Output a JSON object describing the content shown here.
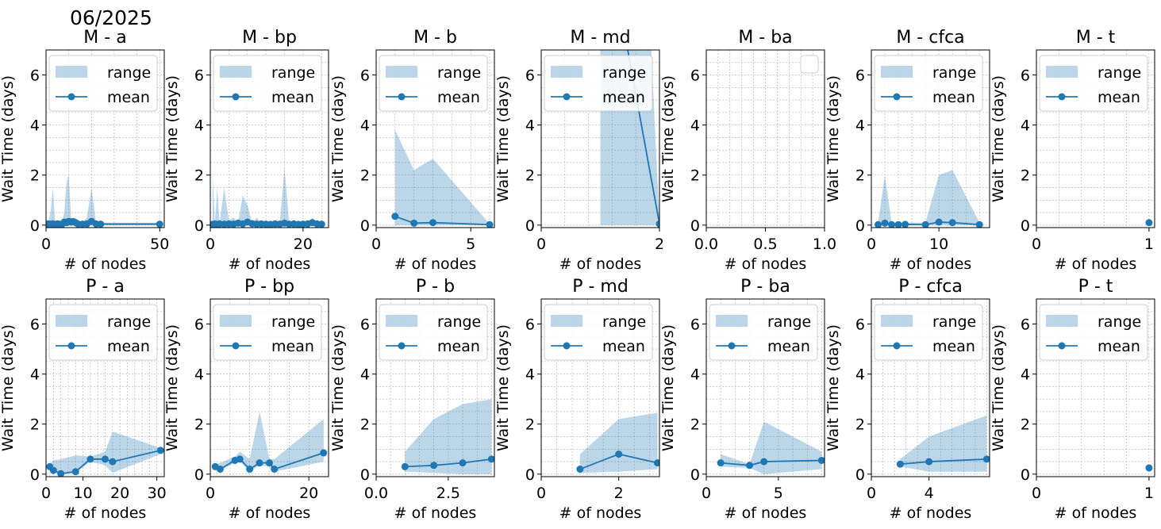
{
  "figure_title": "06/2025",
  "colors": {
    "series": "#1f77b4",
    "range_fill": "#1f77b4",
    "grid": "#b0b0b0",
    "axis": "#000000"
  },
  "legend_labels": {
    "range": "range",
    "mean": "mean"
  },
  "chart_data": [
    {
      "type": "line",
      "title": "M -  a",
      "xlabel": "# of nodes",
      "ylabel": "Wait Time (days)",
      "xlim": [
        0,
        52
      ],
      "ylim": [
        -0.1,
        7
      ],
      "xticks": [
        0,
        50
      ],
      "xticklabels": [
        "0",
        "50"
      ],
      "yticks": [
        0,
        2,
        4,
        6
      ],
      "legend": true,
      "legend_position": "upper-left",
      "series": [
        {
          "name": "mean",
          "x": [
            1,
            2,
            3,
            4,
            5,
            6,
            7,
            8,
            9,
            10,
            11,
            12,
            13,
            14,
            16,
            18,
            20,
            22,
            24,
            50
          ],
          "mean": [
            0.05,
            0.04,
            0.05,
            0.03,
            0.05,
            0.04,
            0.03,
            0.12,
            0.1,
            0.15,
            0.12,
            0.14,
            0.1,
            0.05,
            0.04,
            0.05,
            0.15,
            0.05,
            0.04,
            0.04
          ],
          "low": [
            0,
            0,
            0,
            0,
            0,
            0,
            0,
            0,
            0,
            0,
            0,
            0,
            0,
            0,
            0,
            0,
            0,
            0,
            0,
            0
          ],
          "high": [
            0.1,
            0.5,
            1.5,
            0.1,
            0.2,
            0.1,
            0.1,
            0.5,
            1.7,
            2.0,
            0.3,
            0.2,
            0.1,
            0.1,
            0.1,
            0.3,
            1.5,
            0.1,
            0.1,
            0.1
          ]
        }
      ]
    },
    {
      "type": "line",
      "title": "M -  bp",
      "xlabel": "# of nodes",
      "ylabel": "Wait Time (days)",
      "xlim": [
        0,
        25.5
      ],
      "ylim": [
        -0.1,
        7
      ],
      "xticks": [
        0,
        20
      ],
      "xticklabels": [
        "0",
        "20"
      ],
      "yticks": [
        0,
        2,
        4,
        6
      ],
      "legend": true,
      "legend_position": "upper-left",
      "series": [
        {
          "name": "mean",
          "x": [
            0.5,
            1,
            1.5,
            2,
            3,
            4,
            5,
            6,
            7,
            8,
            9,
            10,
            11,
            12,
            13,
            14,
            15,
            16,
            17,
            18,
            19,
            20,
            21,
            22,
            23,
            24
          ],
          "mean": [
            0.03,
            0.05,
            0.03,
            0.05,
            0.04,
            0.05,
            0.04,
            0.08,
            0.05,
            0.12,
            0.06,
            0.04,
            0.05,
            0.04,
            0.03,
            0.05,
            0.04,
            0.08,
            0.04,
            0.05,
            0.03,
            0.04,
            0.05,
            0.1,
            0.05,
            0.04
          ],
          "low": [
            0,
            0,
            0,
            0,
            0,
            0,
            0,
            0,
            0,
            0,
            0,
            0,
            0,
            0,
            0,
            0,
            0,
            0,
            0,
            0,
            0,
            0,
            0,
            0,
            0,
            0
          ],
          "high": [
            2.0,
            0.1,
            1.5,
            0.1,
            1.5,
            0.2,
            0.3,
            0.1,
            1.2,
            0.8,
            0.1,
            0.3,
            0.1,
            0.1,
            0.1,
            0.2,
            0.1,
            2.3,
            0.1,
            0.2,
            0.1,
            0.1,
            0.1,
            0.3,
            0.1,
            0.1
          ]
        }
      ]
    },
    {
      "type": "line",
      "title": "M -  b",
      "xlabel": "# of nodes",
      "ylabel": "Wait Time (days)",
      "xlim": [
        0,
        6.25
      ],
      "ylim": [
        -0.1,
        7
      ],
      "xticks": [
        0,
        5
      ],
      "xticklabels": [
        "0",
        "5"
      ],
      "yticks": [
        0,
        2,
        4,
        6
      ],
      "legend": true,
      "legend_position": "upper-left",
      "series": [
        {
          "name": "mean",
          "x": [
            1,
            2,
            3,
            6
          ],
          "mean": [
            0.35,
            0.08,
            0.1,
            0.02
          ],
          "low": [
            0,
            0,
            0,
            0
          ],
          "high": [
            3.8,
            2.2,
            2.65,
            0.05
          ]
        }
      ]
    },
    {
      "type": "line",
      "title": "M -  md",
      "xlabel": "# of nodes",
      "ylabel": "Wait Time (days)",
      "xlim": [
        0,
        2
      ],
      "ylim": [
        -0.1,
        7
      ],
      "xticks": [
        0,
        2
      ],
      "xticklabels": [
        "0",
        "2"
      ],
      "yticks": [
        0,
        2,
        4,
        6
      ],
      "legend": true,
      "legend_position": "upper-left",
      "series": [
        {
          "name": "mean",
          "x": [
            1,
            2
          ],
          "mean": [
            13,
            0.05
          ],
          "low": [
            0,
            0
          ],
          "high": [
            50,
            0.1
          ]
        }
      ]
    },
    {
      "type": "line",
      "title": "M -  ba",
      "xlabel": "# of nodes",
      "ylabel": "Wait Time (days)",
      "xlim": [
        0,
        1
      ],
      "ylim": [
        -0.1,
        7
      ],
      "xticks": [
        0,
        0.5,
        1
      ],
      "xticklabels": [
        "0.0",
        "0.5",
        "1.0"
      ],
      "yticks": [
        0,
        2,
        4,
        6
      ],
      "legend": false,
      "legend_position": "upper-right",
      "series": [
        {
          "name": "mean",
          "x": [],
          "mean": [],
          "low": [],
          "high": []
        }
      ]
    },
    {
      "type": "line",
      "title": "M -  cfca",
      "xlabel": "# of nodes",
      "ylabel": "Wait Time (days)",
      "xlim": [
        0,
        17.5
      ],
      "ylim": [
        -0.1,
        7
      ],
      "xticks": [
        0,
        10
      ],
      "xticklabels": [
        "0",
        "10"
      ],
      "yticks": [
        0,
        2,
        4,
        6
      ],
      "legend": true,
      "legend_position": "upper-left",
      "series": [
        {
          "name": "mean",
          "x": [
            1,
            2,
            3,
            4,
            5,
            8,
            10,
            12,
            16
          ],
          "mean": [
            0.02,
            0.08,
            0.02,
            0.02,
            0.03,
            0.02,
            0.12,
            0.1,
            0.02
          ],
          "low": [
            0,
            0,
            0,
            0,
            0,
            0,
            0,
            0,
            0
          ],
          "high": [
            0.1,
            2.0,
            0.1,
            0.1,
            0.1,
            0.1,
            2.0,
            2.2,
            0.1
          ]
        }
      ]
    },
    {
      "type": "line",
      "title": "M -  t",
      "xlabel": "# of nodes",
      "ylabel": "Wait Time (days)",
      "xlim": [
        0,
        1.05
      ],
      "ylim": [
        -0.1,
        7
      ],
      "xticks": [
        0,
        1
      ],
      "xticklabels": [
        "0",
        "1"
      ],
      "yticks": [
        0,
        2,
        4,
        6
      ],
      "legend": true,
      "legend_position": "upper-left",
      "series": [
        {
          "name": "mean",
          "x": [
            1
          ],
          "mean": [
            0.1
          ],
          "low": [
            0.1
          ],
          "high": [
            0.1
          ]
        }
      ]
    },
    {
      "type": "line",
      "title": "P -  a",
      "xlabel": "# of nodes",
      "ylabel": "Wait Time (days)",
      "xlim": [
        0,
        32
      ],
      "ylim": [
        -0.1,
        7
      ],
      "xticks": [
        0,
        10,
        20,
        30
      ],
      "xticklabels": [
        "0",
        "10",
        "20",
        "30"
      ],
      "yticks": [
        0,
        2,
        4,
        6
      ],
      "legend": true,
      "legend_position": "upper-left",
      "series": [
        {
          "name": "mean",
          "x": [
            1,
            2,
            4,
            8,
            12,
            16,
            18,
            31
          ],
          "mean": [
            0.3,
            0.15,
            0.02,
            0.1,
            0.6,
            0.6,
            0.5,
            0.95
          ],
          "low": [
            0.2,
            0.1,
            0,
            0.05,
            0.5,
            0.35,
            0.05,
            0.8
          ],
          "high": [
            0.4,
            0.55,
            0.6,
            0.75,
            0.7,
            0.9,
            1.7,
            1.05
          ]
        }
      ]
    },
    {
      "type": "line",
      "title": "P -  bp",
      "xlabel": "# of nodes",
      "ylabel": "Wait Time (days)",
      "xlim": [
        0,
        24
      ],
      "ylim": [
        -0.1,
        7
      ],
      "xticks": [
        0,
        20
      ],
      "xticklabels": [
        "0",
        "20"
      ],
      "yticks": [
        0,
        2,
        4,
        6
      ],
      "legend": true,
      "legend_position": "upper-left",
      "series": [
        {
          "name": "mean",
          "x": [
            1,
            2,
            5,
            6,
            8,
            10,
            12,
            13,
            23
          ],
          "mean": [
            0.3,
            0.2,
            0.55,
            0.6,
            0.2,
            0.45,
            0.45,
            0.2,
            0.85
          ],
          "low": [
            0.25,
            0.15,
            0.45,
            0.5,
            0.1,
            0.35,
            0.3,
            0.1,
            0.5
          ],
          "high": [
            0.4,
            0.45,
            0.7,
            0.9,
            0.6,
            2.5,
            0.6,
            0.6,
            2.2
          ]
        }
      ]
    },
    {
      "type": "line",
      "title": "P -  b",
      "xlabel": "# of nodes",
      "ylabel": "Wait Time (days)",
      "xlim": [
        0,
        4.1
      ],
      "ylim": [
        -0.1,
        7
      ],
      "xticks": [
        0,
        2.5
      ],
      "xticklabels": [
        "0.0",
        "2.5"
      ],
      "yticks": [
        0,
        2,
        4,
        6
      ],
      "legend": true,
      "legend_position": "upper-left",
      "series": [
        {
          "name": "mean",
          "x": [
            1,
            2,
            3,
            4
          ],
          "mean": [
            0.3,
            0.35,
            0.45,
            0.6
          ],
          "low": [
            0.1,
            0.05,
            0,
            0
          ],
          "high": [
            0.9,
            2.2,
            2.8,
            3.0
          ]
        }
      ]
    },
    {
      "type": "line",
      "title": "P -  md",
      "xlabel": "# of nodes",
      "ylabel": "Wait Time (days)",
      "xlim": [
        0,
        3.05
      ],
      "ylim": [
        -0.1,
        7
      ],
      "xticks": [
        0,
        2
      ],
      "xticklabels": [
        "0",
        "2"
      ],
      "yticks": [
        0,
        2,
        4,
        6
      ],
      "legend": true,
      "legend_position": "upper-left",
      "series": [
        {
          "name": "mean",
          "x": [
            1,
            2,
            3
          ],
          "mean": [
            0.2,
            0.8,
            0.45
          ],
          "low": [
            0.05,
            0.1,
            0.2
          ],
          "high": [
            0.8,
            2.2,
            2.45
          ]
        }
      ]
    },
    {
      "type": "line",
      "title": "P -  ba",
      "xlabel": "# of nodes",
      "ylabel": "Wait Time (days)",
      "xlim": [
        0,
        8.2
      ],
      "ylim": [
        -0.1,
        7
      ],
      "xticks": [
        0,
        5
      ],
      "xticklabels": [
        "0",
        "5"
      ],
      "yticks": [
        0,
        2,
        4,
        6
      ],
      "legend": true,
      "legend_position": "upper-left",
      "series": [
        {
          "name": "mean",
          "x": [
            1,
            3,
            4,
            8
          ],
          "mean": [
            0.45,
            0.35,
            0.5,
            0.55
          ],
          "low": [
            0.3,
            0.25,
            0,
            0.2
          ],
          "high": [
            0.8,
            0.4,
            2.1,
            0.9
          ]
        }
      ]
    },
    {
      "type": "line",
      "title": "P -  cfca",
      "xlabel": "# of nodes",
      "ylabel": "Wait Time (days)",
      "xlim": [
        0,
        8.2
      ],
      "ylim": [
        -0.1,
        7
      ],
      "xticks": [
        0,
        4
      ],
      "xticklabels": [
        "0",
        "4"
      ],
      "yticks": [
        0,
        2,
        4,
        6
      ],
      "legend": true,
      "legend_position": "upper-left",
      "series": [
        {
          "name": "mean",
          "x": [
            2,
            4,
            8
          ],
          "mean": [
            0.4,
            0.5,
            0.6
          ],
          "low": [
            0.3,
            0.1,
            0.1
          ],
          "high": [
            0.6,
            1.5,
            2.35
          ]
        }
      ]
    },
    {
      "type": "line",
      "title": "P -  t",
      "xlabel": "# of nodes",
      "ylabel": "Wait Time (days)",
      "xlim": [
        0,
        1.05
      ],
      "ylim": [
        -0.1,
        7
      ],
      "xticks": [
        0,
        1
      ],
      "xticklabels": [
        "0",
        "1"
      ],
      "yticks": [
        0,
        2,
        4,
        6
      ],
      "legend": true,
      "legend_position": "upper-left",
      "series": [
        {
          "name": "mean",
          "x": [
            1
          ],
          "mean": [
            0.25
          ],
          "low": [
            0.25
          ],
          "high": [
            0.25
          ]
        }
      ]
    }
  ]
}
